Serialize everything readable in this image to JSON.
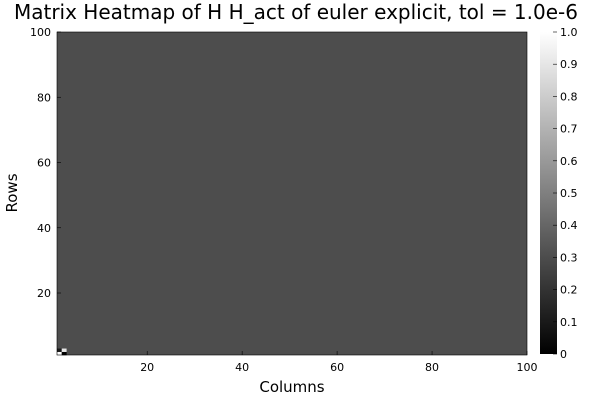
{
  "chart_data": {
    "type": "heatmap",
    "title": "Matrix Heatmap of H H_act of euler explicit, tol = 1.0e-6",
    "xlabel": "Columns",
    "ylabel": "Rows",
    "xlim": [
      1,
      100
    ],
    "ylim": [
      1,
      100
    ],
    "x_ticks": [
      "20",
      "40",
      "60",
      "80",
      "100"
    ],
    "y_ticks": [
      "20",
      "40",
      "60",
      "80",
      "100"
    ],
    "colorbar": {
      "range": [
        0,
        1
      ],
      "ticks": [
        "0",
        "0.1",
        "0.2",
        "0.3",
        "0.4",
        "0.5",
        "0.6",
        "0.7",
        "0.8",
        "0.9",
        "1.0"
      ],
      "colormap": "grays"
    },
    "grid": false,
    "matrix_size": [
      100,
      100
    ],
    "background_value": 0.3,
    "notable_cells": [
      {
        "row": 1,
        "col": 1,
        "value": 1.0
      },
      {
        "row": 1,
        "col": 2,
        "value": 0.0
      },
      {
        "row": 2,
        "col": 1,
        "value": 0.1
      },
      {
        "row": 2,
        "col": 2,
        "value": 0.9
      }
    ]
  }
}
